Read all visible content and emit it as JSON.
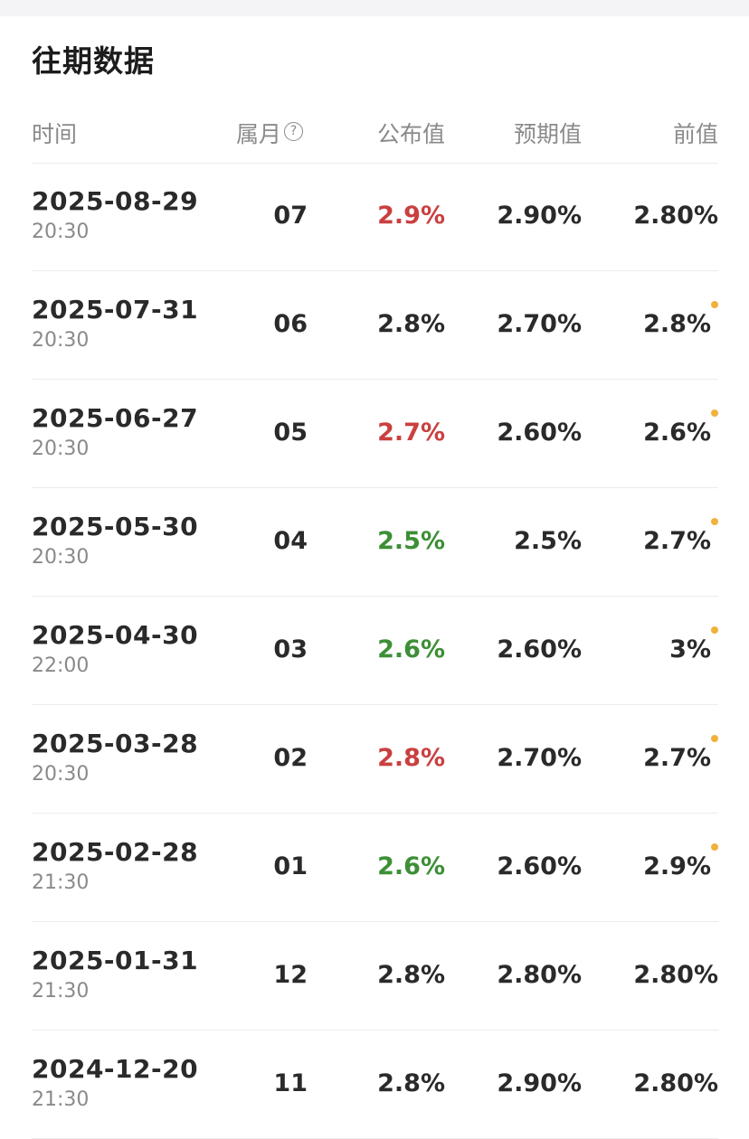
{
  "colors": {
    "up": "#c9403f",
    "down": "#3d8f36",
    "neutral": "#2a2a2a",
    "revised_dot": "#f0b23c"
  },
  "section": {
    "title": "往期数据"
  },
  "table": {
    "headers": {
      "time": "时间",
      "month": "属月",
      "month_help_icon": "question-circle-icon",
      "actual": "公布值",
      "forecast": "预期值",
      "previous": "前值"
    },
    "rows": [
      {
        "date": "2025-08-29",
        "time": "20:30",
        "month": "07",
        "actual": "2.9%",
        "actual_trend": "up",
        "forecast": "2.90%",
        "previous": "2.80%",
        "revised": false
      },
      {
        "date": "2025-07-31",
        "time": "20:30",
        "month": "06",
        "actual": "2.8%",
        "actual_trend": "neutral",
        "forecast": "2.70%",
        "previous": "2.8%",
        "revised": true
      },
      {
        "date": "2025-06-27",
        "time": "20:30",
        "month": "05",
        "actual": "2.7%",
        "actual_trend": "up",
        "forecast": "2.60%",
        "previous": "2.6%",
        "revised": true
      },
      {
        "date": "2025-05-30",
        "time": "20:30",
        "month": "04",
        "actual": "2.5%",
        "actual_trend": "down",
        "forecast": "2.5%",
        "previous": "2.7%",
        "revised": true
      },
      {
        "date": "2025-04-30",
        "time": "22:00",
        "month": "03",
        "actual": "2.6%",
        "actual_trend": "down",
        "forecast": "2.60%",
        "previous": "3%",
        "revised": true
      },
      {
        "date": "2025-03-28",
        "time": "20:30",
        "month": "02",
        "actual": "2.8%",
        "actual_trend": "up",
        "forecast": "2.70%",
        "previous": "2.7%",
        "revised": true
      },
      {
        "date": "2025-02-28",
        "time": "21:30",
        "month": "01",
        "actual": "2.6%",
        "actual_trend": "down",
        "forecast": "2.60%",
        "previous": "2.9%",
        "revised": true
      },
      {
        "date": "2025-01-31",
        "time": "21:30",
        "month": "12",
        "actual": "2.8%",
        "actual_trend": "neutral",
        "forecast": "2.80%",
        "previous": "2.80%",
        "revised": false
      },
      {
        "date": "2024-12-20",
        "time": "21:30",
        "month": "11",
        "actual": "2.8%",
        "actual_trend": "neutral",
        "forecast": "2.90%",
        "previous": "2.80%",
        "revised": false
      }
    ]
  }
}
